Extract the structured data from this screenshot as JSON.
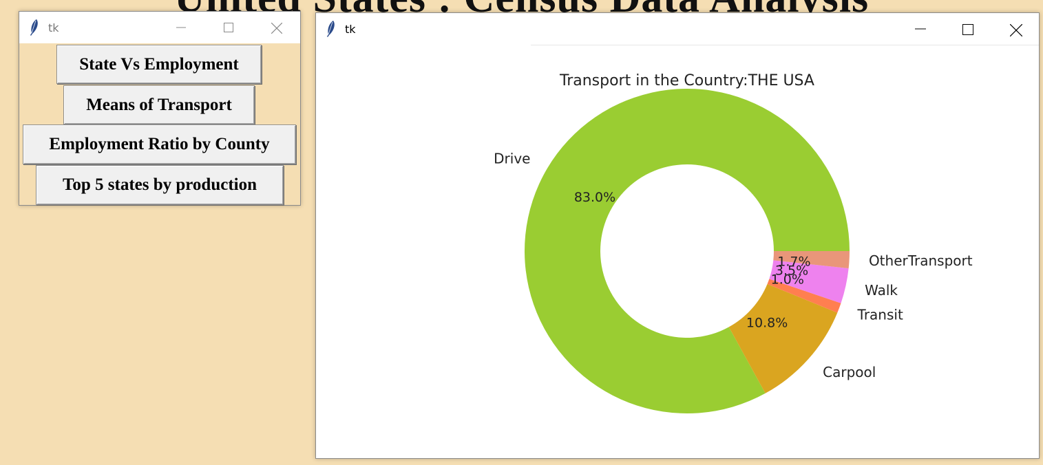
{
  "banner": {
    "title": "United States : Census Data Analysis"
  },
  "menu_window": {
    "title": "tk",
    "buttons": [
      "State Vs Employment",
      "Means of Transport",
      "Employment Ratio by County",
      "Top 5 states by production"
    ]
  },
  "chart_window": {
    "title": "tk"
  },
  "chart_data": {
    "type": "pie",
    "style": "donut",
    "title": "Transport in the Country:THE USA",
    "slices": [
      {
        "label": "Drive",
        "value": 83.0,
        "pct_label": "83.0%",
        "color": "#9acd32"
      },
      {
        "label": "Carpool",
        "value": 10.8,
        "pct_label": "10.8%",
        "color": "#daa520"
      },
      {
        "label": "Transit",
        "value": 1.0,
        "pct_label": "1.0%",
        "color": "#ff7f50"
      },
      {
        "label": "Walk",
        "value": 3.5,
        "pct_label": "3.5%",
        "color": "#ee82ee"
      },
      {
        "label": "OtherTransport",
        "value": 1.7,
        "pct_label": "1.7%",
        "color": "#e9967a"
      }
    ]
  }
}
